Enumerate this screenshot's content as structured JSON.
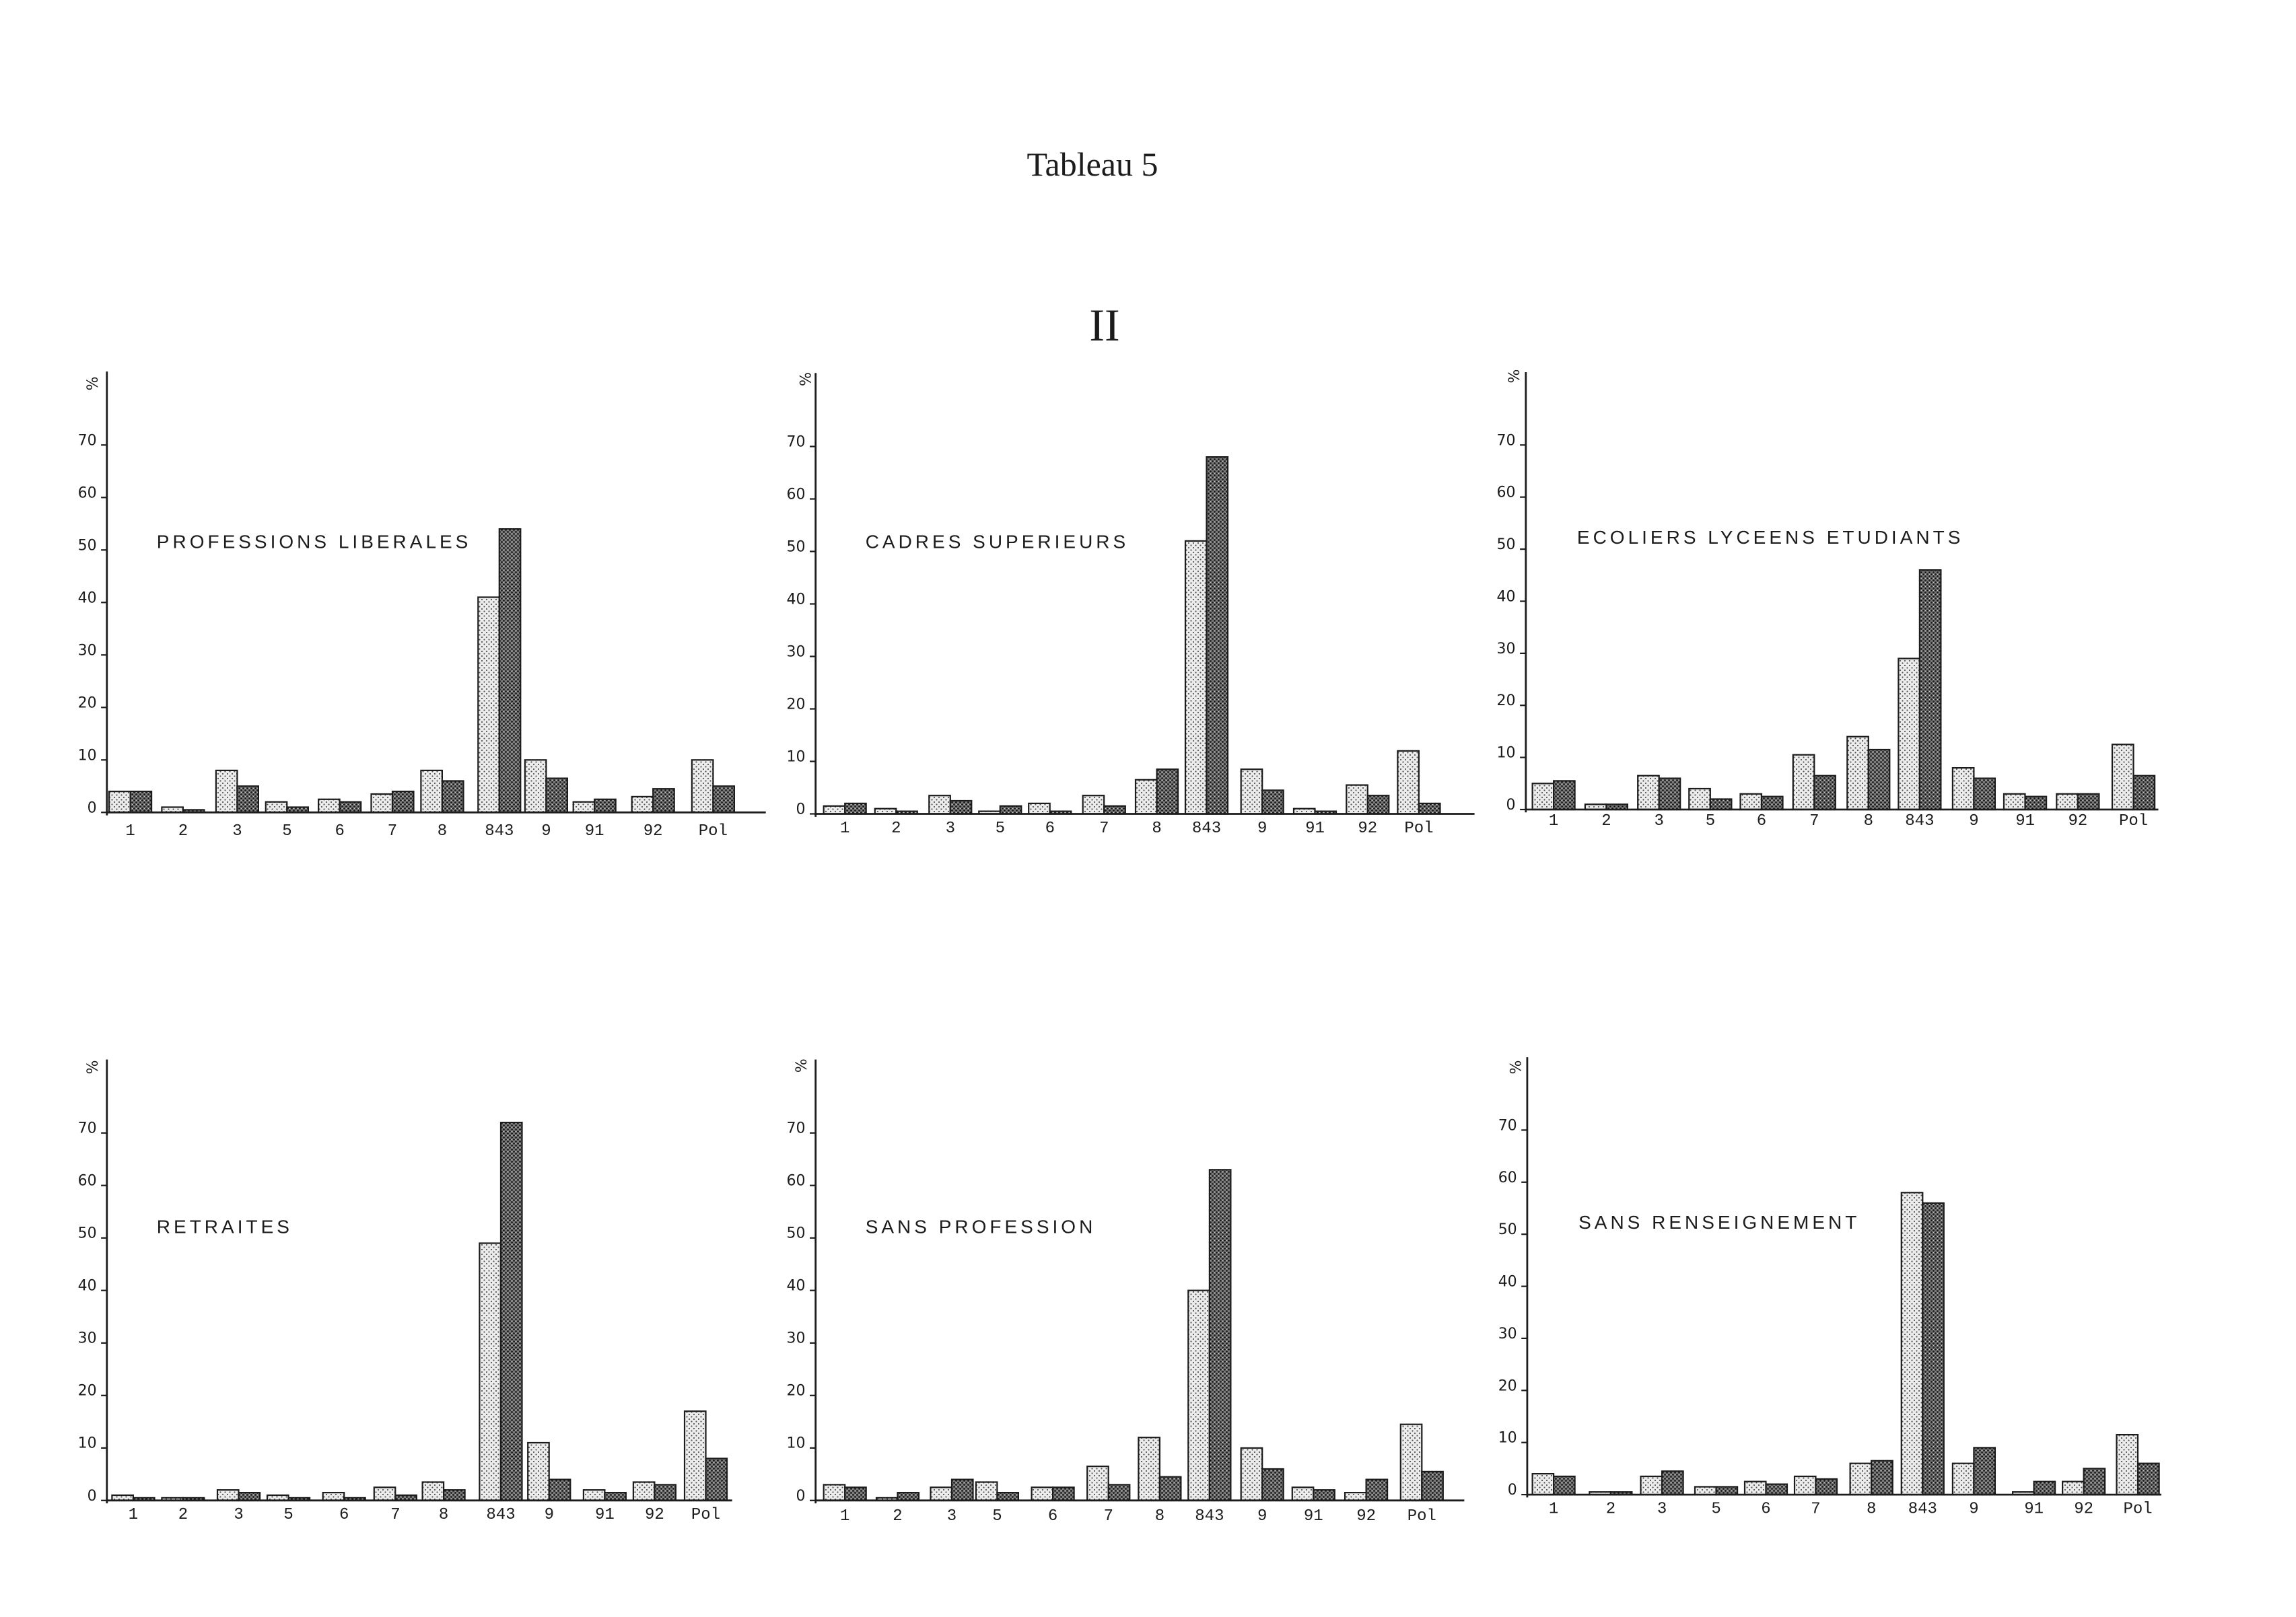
{
  "page": {
    "title": "Tableau 5",
    "section": "II"
  },
  "colors": {
    "ink": "#1c1c1c",
    "paper": "#ffffff",
    "light_bar": "#ececec",
    "dark_bar": "#7a7a7a"
  },
  "chart_data": [
    {
      "type": "bar",
      "title": "PROFESSIONS LIBERALES",
      "ylabel": "%",
      "ylim": [
        0,
        84
      ],
      "yticks": [
        0,
        10,
        20,
        30,
        40,
        50,
        60,
        70
      ],
      "categories": [
        "1",
        "2",
        "3",
        "5",
        "6",
        "7",
        "8",
        "843",
        "9",
        "91",
        "92",
        "Pol"
      ],
      "series": [
        {
          "values": [
            4,
            1,
            8,
            2,
            2.5,
            3.5,
            8,
            41,
            10,
            2,
            3,
            10
          ]
        },
        {
          "values": [
            4,
            0.5,
            5,
            1,
            2,
            4,
            6,
            54,
            6.5,
            2.5,
            4.5,
            5
          ]
        }
      ]
    },
    {
      "type": "bar",
      "title": "CADRES SUPERIEURS",
      "ylabel": "%",
      "ylim": [
        0,
        84
      ],
      "yticks": [
        0,
        10,
        20,
        30,
        40,
        50,
        60,
        70
      ],
      "categories": [
        "1",
        "2",
        "3",
        "5",
        "6",
        "7",
        "8",
        "843",
        "9",
        "91",
        "92",
        "Pol"
      ],
      "series": [
        {
          "values": [
            1.5,
            1,
            3.5,
            0.5,
            2,
            3.5,
            6.5,
            52,
            8.5,
            1,
            5.5,
            12
          ]
        },
        {
          "values": [
            2,
            0.5,
            2.5,
            1.5,
            0.5,
            1.5,
            8.5,
            68,
            4.5,
            0.5,
            3.5,
            2
          ]
        }
      ]
    },
    {
      "type": "bar",
      "title": "ECOLIERS LYCEENS ETUDIANTS",
      "ylabel": "%",
      "ylim": [
        0,
        84
      ],
      "yticks": [
        0,
        10,
        20,
        30,
        40,
        50,
        60,
        70
      ],
      "categories": [
        "1",
        "2",
        "3",
        "5",
        "6",
        "7",
        "8",
        "843",
        "9",
        "91",
        "92",
        "Pol"
      ],
      "series": [
        {
          "values": [
            5,
            1,
            6.5,
            4,
            3,
            10.5,
            14,
            29,
            8,
            3,
            3,
            12.5
          ]
        },
        {
          "values": [
            5.5,
            1,
            6,
            2,
            2.5,
            6.5,
            11.5,
            46,
            6,
            2.5,
            3,
            6.5
          ]
        }
      ]
    },
    {
      "type": "bar",
      "title": "RETRAITES",
      "ylabel": "%",
      "ylim": [
        0,
        84
      ],
      "yticks": [
        0,
        10,
        20,
        30,
        40,
        50,
        60,
        70
      ],
      "categories": [
        "1",
        "2",
        "3",
        "5",
        "6",
        "7",
        "8",
        "843",
        "9",
        "91",
        "92",
        "Pol"
      ],
      "series": [
        {
          "values": [
            1,
            0.5,
            2,
            1,
            1.5,
            2.5,
            3.5,
            49,
            11,
            2,
            3.5,
            17
          ]
        },
        {
          "values": [
            0.5,
            0.5,
            1.5,
            0.5,
            0.5,
            1,
            2,
            72,
            4,
            1.5,
            3,
            8
          ]
        }
      ]
    },
    {
      "type": "bar",
      "title": "SANS PROFESSION",
      "ylabel": "%",
      "ylim": [
        0,
        84
      ],
      "yticks": [
        0,
        10,
        20,
        30,
        40,
        50,
        60,
        70
      ],
      "categories": [
        "1",
        "2",
        "3",
        "5",
        "6",
        "7",
        "8",
        "843",
        "9",
        "91",
        "92",
        "Pol"
      ],
      "series": [
        {
          "values": [
            3,
            0.5,
            2.5,
            3.5,
            2.5,
            6.5,
            12,
            40,
            10,
            2.5,
            1.5,
            14.5
          ]
        },
        {
          "values": [
            2.5,
            1.5,
            4,
            1.5,
            2.5,
            3,
            4.5,
            63,
            6,
            2,
            4,
            5.5
          ]
        }
      ]
    },
    {
      "type": "bar",
      "title": "SANS RENSEIGNEMENT",
      "ylabel": "%",
      "ylim": [
        0,
        84
      ],
      "yticks": [
        0,
        10,
        20,
        30,
        40,
        50,
        60,
        70
      ],
      "categories": [
        "1",
        "2",
        "3",
        "5",
        "6",
        "7",
        "8",
        "843",
        "9",
        "91",
        "92",
        "Pol"
      ],
      "series": [
        {
          "values": [
            4,
            0.5,
            3.5,
            1.5,
            2.5,
            3.5,
            6,
            58,
            6,
            0.5,
            2.5,
            11.5
          ]
        },
        {
          "values": [
            3.5,
            0.5,
            4.5,
            1.5,
            2,
            3,
            6.5,
            56,
            9,
            2.5,
            5,
            6
          ]
        }
      ]
    }
  ]
}
